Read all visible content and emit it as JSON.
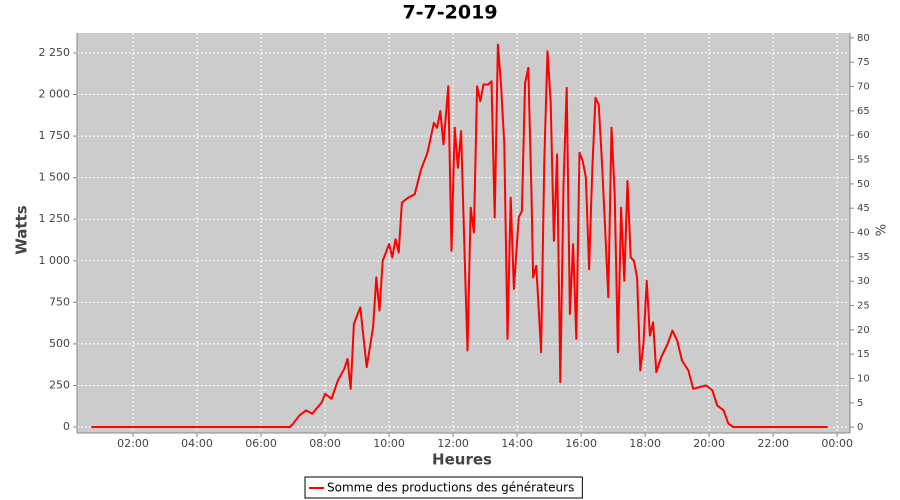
{
  "chart_data": {
    "type": "line",
    "title": "7-7-2019",
    "x_label": "Heures",
    "y_label": "Watts",
    "y2_label": "%",
    "xlim": [
      0.25,
      24.4
    ],
    "xticks": [
      {
        "value": 2,
        "label": "02:00"
      },
      {
        "value": 4,
        "label": "04:00"
      },
      {
        "value": 6,
        "label": "06:00"
      },
      {
        "value": 8,
        "label": "08:00"
      },
      {
        "value": 10,
        "label": "10:00"
      },
      {
        "value": 12,
        "label": "12:00"
      },
      {
        "value": 14,
        "label": "14:00"
      },
      {
        "value": 16,
        "label": "16:00"
      },
      {
        "value": 18,
        "label": "18:00"
      },
      {
        "value": 20,
        "label": "20:00"
      },
      {
        "value": 22,
        "label": "22:00"
      },
      {
        "value": 24,
        "label": "00:00"
      }
    ],
    "ylim": [
      -36,
      2370
    ],
    "yticks": [
      0,
      250,
      500,
      750,
      {
        "value": 1000,
        "label": "1 000"
      },
      {
        "value": 1250,
        "label": "1 250"
      },
      {
        "value": 1500,
        "label": "1 500"
      },
      {
        "value": 1750,
        "label": "1 750"
      },
      {
        "value": 2000,
        "label": "2 000"
      },
      {
        "value": 2250,
        "label": "2 250"
      }
    ],
    "y2lim": [
      -1.2,
      81
    ],
    "y2ticks": [
      0,
      5,
      10,
      15,
      20,
      25,
      30,
      35,
      40,
      45,
      50,
      55,
      60,
      65,
      70,
      75,
      80
    ],
    "grid": true,
    "legend": "bottom",
    "background": "#cccccc",
    "x": [
      0.7,
      6.9,
      7.0,
      7.2,
      7.4,
      7.6,
      7.9,
      8.0,
      8.2,
      8.4,
      8.6,
      8.7,
      8.8,
      8.9,
      9.1,
      9.3,
      9.5,
      9.6,
      9.7,
      9.8,
      10.0,
      10.1,
      10.2,
      10.3,
      10.4,
      10.6,
      10.8,
      11.0,
      11.2,
      11.4,
      11.5,
      11.6,
      11.7,
      11.85,
      11.95,
      12.05,
      12.15,
      12.25,
      12.35,
      12.45,
      12.55,
      12.65,
      12.75,
      12.85,
      12.95,
      13.1,
      13.2,
      13.3,
      13.4,
      13.5,
      13.6,
      13.7,
      13.8,
      13.9,
      14.05,
      14.15,
      14.25,
      14.35,
      14.45,
      14.5,
      14.6,
      14.75,
      14.85,
      14.95,
      15.05,
      15.15,
      15.25,
      15.35,
      15.45,
      15.55,
      15.65,
      15.75,
      15.85,
      15.95,
      16.05,
      16.15,
      16.25,
      16.35,
      16.45,
      16.55,
      16.65,
      16.75,
      16.85,
      16.95,
      17.05,
      17.15,
      17.25,
      17.35,
      17.45,
      17.55,
      17.65,
      17.75,
      17.85,
      17.95,
      18.05,
      18.15,
      18.25,
      18.35,
      18.5,
      18.7,
      18.85,
      19.0,
      19.15,
      19.35,
      19.5,
      19.7,
      19.9,
      20.1,
      20.25,
      20.45,
      20.6,
      20.75,
      23.7
    ],
    "series": [
      {
        "name": "Somme des productions des  générateurs",
        "color": "#ff0000",
        "values": [
          0,
          0,
          20,
          70,
          100,
          80,
          150,
          200,
          170,
          280,
          350,
          410,
          230,
          620,
          720,
          360,
          600,
          900,
          700,
          1000,
          1100,
          1020,
          1130,
          1050,
          1350,
          1380,
          1400,
          1550,
          1650,
          1830,
          1800,
          1900,
          1700,
          2050,
          1060,
          1800,
          1560,
          1780,
          1100,
          460,
          1320,
          1170,
          2050,
          1960,
          2060,
          2060,
          2080,
          1260,
          2300,
          2050,
          1700,
          530,
          1380,
          830,
          1260,
          1300,
          2070,
          2160,
          1400,
          900,
          970,
          450,
          1600,
          2260,
          1950,
          1120,
          1640,
          270,
          1450,
          2040,
          680,
          1100,
          530,
          1650,
          1600,
          1500,
          950,
          1550,
          1980,
          1940,
          1600,
          1200,
          780,
          1800,
          1400,
          450,
          1320,
          880,
          1480,
          1020,
          1000,
          900,
          340,
          500,
          880,
          550,
          630,
          330,
          420,
          500,
          580,
          520,
          400,
          340,
          230,
          240,
          250,
          220,
          130,
          100,
          20,
          0,
          0
        ]
      }
    ]
  }
}
